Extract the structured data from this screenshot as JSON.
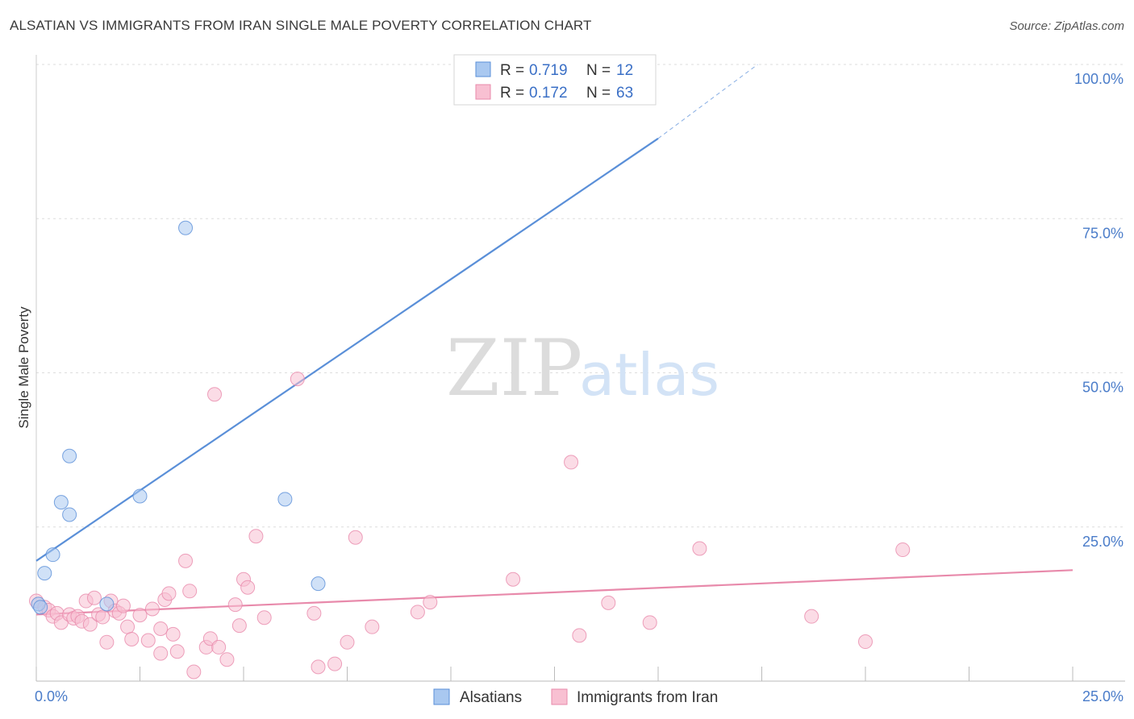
{
  "header": {
    "title": "ALSATIAN VS IMMIGRANTS FROM IRAN SINGLE MALE POVERTY CORRELATION CHART",
    "source": "Source: ZipAtlas.com"
  },
  "watermark": {
    "zip": "ZIP",
    "atlas": "atlas"
  },
  "legend": {
    "r_label": "R =",
    "n_label": "N =",
    "entries": [
      {
        "r": "0.719",
        "n": "12",
        "color": "#a9c8f0",
        "stroke": "#5a8fd8"
      },
      {
        "r": "0.172",
        "n": "63",
        "color": "#f8c0d2",
        "stroke": "#e88aab"
      }
    ]
  },
  "bottom_legend": [
    {
      "label": "Alsatians",
      "color": "#a9c8f0",
      "stroke": "#5a8fd8"
    },
    {
      "label": "Immigrants from Iran",
      "color": "#f8c0d2",
      "stroke": "#e88aab"
    }
  ],
  "chart_data": {
    "type": "scatter",
    "title": "ALSATIAN VS IMMIGRANTS FROM IRAN SINGLE MALE POVERTY CORRELATION CHART",
    "xlabel": "",
    "ylabel": "Single Male Poverty",
    "xlim": [
      0,
      25
    ],
    "ylim": [
      0,
      100
    ],
    "x_tick_labels": [
      "0.0%",
      "25.0%"
    ],
    "y_ticks": [
      25,
      50,
      75,
      100
    ],
    "y_tick_labels": [
      "25.0%",
      "50.0%",
      "75.0%",
      "100.0%"
    ],
    "grid": "horizontal dashed",
    "legend_position": "top-center",
    "series": [
      {
        "name": "Alsatians",
        "color": "#5a8fd8",
        "fill": "#a9c8f0",
        "points": [
          [
            0.2,
            17.5
          ],
          [
            0.4,
            20.5
          ],
          [
            0.6,
            29.0
          ],
          [
            0.8,
            36.5
          ],
          [
            0.8,
            27.0
          ],
          [
            1.7,
            12.5
          ],
          [
            2.5,
            30.0
          ],
          [
            3.6,
            73.5
          ],
          [
            6.0,
            29.5
          ],
          [
            6.8,
            15.8
          ],
          [
            0.05,
            12.5
          ],
          [
            0.1,
            12.0
          ]
        ],
        "trend": {
          "x0": 0.0,
          "y0": 19.5,
          "x1": 15.0,
          "y1": 88.0,
          "dash_x1": 17.4,
          "dash_y1": 100.0
        }
      },
      {
        "name": "Immigrants from Iran",
        "color": "#e88aab",
        "fill": "#f8c0d2",
        "points": [
          [
            0.0,
            13.0
          ],
          [
            0.2,
            12.0
          ],
          [
            0.3,
            11.5
          ],
          [
            0.4,
            10.5
          ],
          [
            0.5,
            11.0
          ],
          [
            0.6,
            9.5
          ],
          [
            0.8,
            10.8
          ],
          [
            0.9,
            10.2
          ],
          [
            1.0,
            10.5
          ],
          [
            1.1,
            9.7
          ],
          [
            1.2,
            13.0
          ],
          [
            1.3,
            9.2
          ],
          [
            1.4,
            13.5
          ],
          [
            1.5,
            10.8
          ],
          [
            1.6,
            10.4
          ],
          [
            1.7,
            6.3
          ],
          [
            1.8,
            13.0
          ],
          [
            1.9,
            11.4
          ],
          [
            2.0,
            11.0
          ],
          [
            2.1,
            12.2
          ],
          [
            2.2,
            8.8
          ],
          [
            2.3,
            6.8
          ],
          [
            2.5,
            10.7
          ],
          [
            2.7,
            6.6
          ],
          [
            2.8,
            11.7
          ],
          [
            3.0,
            8.5
          ],
          [
            3.0,
            4.5
          ],
          [
            3.1,
            13.2
          ],
          [
            3.2,
            14.2
          ],
          [
            3.3,
            7.6
          ],
          [
            3.4,
            4.8
          ],
          [
            3.6,
            19.5
          ],
          [
            3.7,
            14.6
          ],
          [
            3.8,
            1.5
          ],
          [
            4.1,
            5.5
          ],
          [
            4.3,
            46.5
          ],
          [
            4.2,
            6.9
          ],
          [
            4.4,
            5.5
          ],
          [
            4.6,
            3.5
          ],
          [
            4.8,
            12.4
          ],
          [
            4.9,
            9.0
          ],
          [
            5.0,
            16.5
          ],
          [
            5.1,
            15.2
          ],
          [
            5.3,
            23.5
          ],
          [
            5.5,
            10.3
          ],
          [
            6.3,
            49.0
          ],
          [
            6.7,
            11.0
          ],
          [
            6.8,
            2.3
          ],
          [
            7.2,
            2.8
          ],
          [
            7.5,
            6.3
          ],
          [
            7.7,
            23.3
          ],
          [
            8.1,
            8.8
          ],
          [
            9.2,
            11.2
          ],
          [
            9.5,
            12.8
          ],
          [
            11.5,
            16.5
          ],
          [
            12.9,
            35.5
          ],
          [
            13.1,
            7.4
          ],
          [
            13.8,
            12.7
          ],
          [
            14.8,
            9.5
          ],
          [
            16.0,
            21.5
          ],
          [
            18.7,
            10.5
          ],
          [
            20.0,
            6.4
          ],
          [
            20.9,
            21.3
          ]
        ],
        "trend": {
          "x0": 0.0,
          "y0": 10.8,
          "x1": 25.0,
          "y1": 18.0
        }
      }
    ]
  }
}
